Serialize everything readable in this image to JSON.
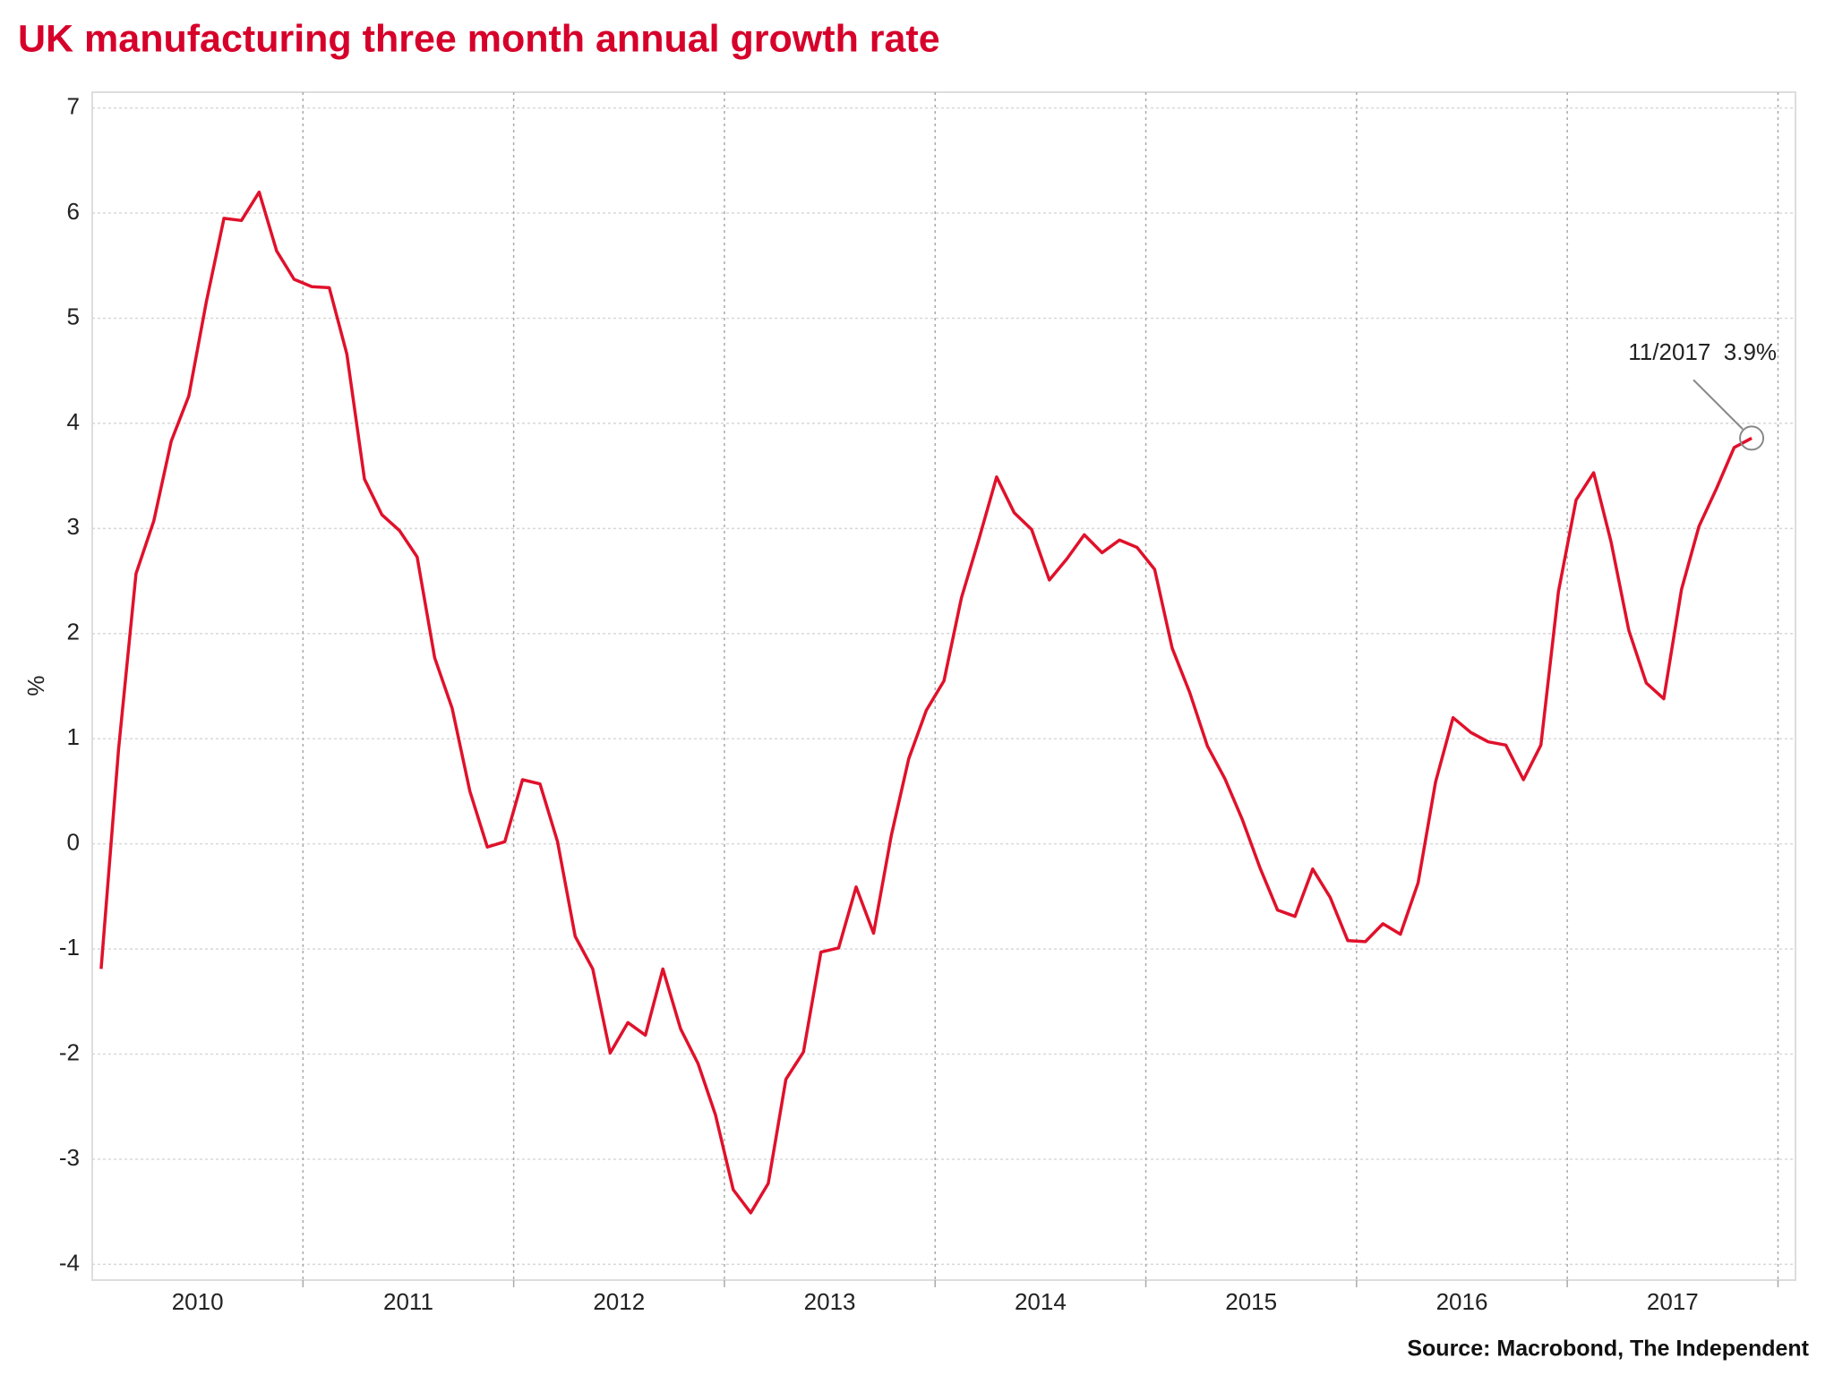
{
  "chart_data": {
    "type": "line",
    "title": "UK manufacturing three month annual growth rate",
    "y_label": "%",
    "source": "Source: Macrobond, The Independent",
    "annotation": "11/2017  3.9%",
    "x": [
      2010.042,
      2010.125,
      2010.208,
      2010.292,
      2010.375,
      2010.458,
      2010.542,
      2010.625,
      2010.708,
      2010.792,
      2010.875,
      2010.958,
      2011.042,
      2011.125,
      2011.208,
      2011.292,
      2011.375,
      2011.458,
      2011.542,
      2011.625,
      2011.708,
      2011.792,
      2011.875,
      2011.958,
      2012.042,
      2012.125,
      2012.208,
      2012.292,
      2012.375,
      2012.458,
      2012.542,
      2012.625,
      2012.708,
      2012.792,
      2012.875,
      2012.958,
      2013.042,
      2013.125,
      2013.208,
      2013.292,
      2013.375,
      2013.458,
      2013.542,
      2013.625,
      2013.708,
      2013.792,
      2013.875,
      2013.958,
      2014.042,
      2014.125,
      2014.208,
      2014.292,
      2014.375,
      2014.458,
      2014.542,
      2014.625,
      2014.708,
      2014.792,
      2014.875,
      2014.958,
      2015.042,
      2015.125,
      2015.208,
      2015.292,
      2015.375,
      2015.458,
      2015.542,
      2015.625,
      2015.708,
      2015.792,
      2015.875,
      2015.958,
      2016.042,
      2016.125,
      2016.208,
      2016.292,
      2016.375,
      2016.458,
      2016.542,
      2016.625,
      2016.708,
      2016.792,
      2016.875,
      2016.958,
      2017.042,
      2017.125,
      2017.208,
      2017.292,
      2017.375,
      2017.458,
      2017.542,
      2017.625,
      2017.708,
      2017.792,
      2017.875
    ],
    "series": [
      {
        "color": "#e0112b",
        "values": [
          -1.19,
          0.9,
          2.57,
          3.07,
          3.83,
          4.26,
          5.16,
          5.95,
          5.93,
          6.2,
          5.64,
          5.37,
          5.3,
          5.29,
          4.66,
          3.47,
          3.13,
          2.98,
          2.73,
          1.77,
          1.29,
          0.5,
          -0.03,
          0.02,
          0.61,
          0.57,
          0.02,
          -0.88,
          -1.19,
          -1.99,
          -1.7,
          -1.82,
          -1.19,
          -1.76,
          -2.09,
          -2.58,
          -3.29,
          -3.51,
          -3.23,
          -2.24,
          -1.98,
          -1.03,
          -0.99,
          -0.41,
          -0.85,
          0.08,
          0.81,
          1.27,
          1.55,
          2.34,
          2.9,
          3.49,
          3.15,
          2.99,
          2.51,
          2.71,
          2.94,
          2.77,
          2.89,
          2.82,
          2.61,
          1.86,
          1.44,
          0.93,
          0.62,
          0.23,
          -0.23,
          -0.63,
          -0.69,
          -0.24,
          -0.51,
          -0.92,
          -0.93,
          -0.76,
          -0.86,
          -0.37,
          0.59,
          1.2,
          1.06,
          0.97,
          0.94,
          0.61,
          0.94,
          2.4,
          3.27,
          3.53,
          2.87,
          2.03,
          1.53,
          1.38,
          2.42,
          3.02,
          3.38,
          3.77,
          3.86
        ]
      }
    ],
    "xlim": [
      2010,
      2018.083
    ],
    "xticks": [
      {
        "value": 2010.5,
        "label": "2010"
      },
      {
        "value": 2011.5,
        "label": "2011"
      },
      {
        "value": 2012.5,
        "label": "2012"
      },
      {
        "value": 2013.5,
        "label": "2013"
      },
      {
        "value": 2014.5,
        "label": "2014"
      },
      {
        "value": 2015.5,
        "label": "2015"
      },
      {
        "value": 2016.5,
        "label": "2016"
      },
      {
        "value": 2017.5,
        "label": "2017"
      }
    ],
    "ylim": [
      -4.15,
      7.15
    ],
    "yticks": [
      -4,
      -3,
      -2,
      -1,
      0,
      1,
      2,
      3,
      4,
      5,
      6,
      7
    ],
    "grid": true
  }
}
